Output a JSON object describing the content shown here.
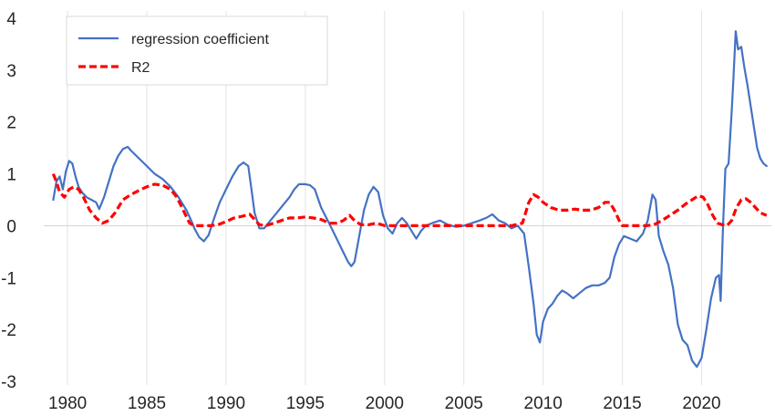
{
  "chart_data": {
    "type": "line",
    "title": "",
    "xlabel": "",
    "ylabel": "",
    "xlim": [
      1978.5,
      2024.4
    ],
    "ylim": [
      -3,
      4
    ],
    "xticks": [
      1980,
      1985,
      1990,
      1995,
      2000,
      2005,
      2010,
      2015,
      2020
    ],
    "xtick_labels": [
      "1980",
      "1985",
      "1990",
      "1995",
      "2000",
      "2005",
      "2010",
      "2015",
      "2020"
    ],
    "yticks": [
      -3,
      -2,
      -1,
      0,
      1,
      2,
      3,
      4
    ],
    "ytick_labels": [
      "-3",
      "-2",
      "-1",
      "0",
      "1",
      "2",
      "3",
      "4"
    ],
    "grid": "vertical",
    "legend": {
      "position": "top-left",
      "entries": [
        "regression coefficient",
        "R2"
      ]
    },
    "series": [
      {
        "name": "regression coefficient",
        "color": "#4472c4",
        "style": "solid",
        "x": [
          1979.1,
          1979.3,
          1979.5,
          1979.7,
          1979.9,
          1980.1,
          1980.3,
          1980.5,
          1980.7,
          1980.9,
          1981.2,
          1981.5,
          1981.8,
          1982.0,
          1982.3,
          1982.6,
          1982.9,
          1983.2,
          1983.5,
          1983.8,
          1984.0,
          1984.5,
          1985.0,
          1985.5,
          1986.0,
          1986.5,
          1987.0,
          1987.5,
          1987.8,
          1988.0,
          1988.3,
          1988.6,
          1988.9,
          1989.2,
          1989.6,
          1990.0,
          1990.4,
          1990.8,
          1991.1,
          1991.4,
          1991.6,
          1991.8,
          1992.1,
          1992.4,
          1992.8,
          1993.2,
          1993.6,
          1994.0,
          1994.3,
          1994.6,
          1995.0,
          1995.3,
          1995.6,
          1996.0,
          1996.5,
          1996.9,
          1997.3,
          1997.7,
          1997.9,
          1998.1,
          1998.4,
          1998.7,
          1999.0,
          1999.3,
          1999.6,
          1999.9,
          2000.2,
          2000.5,
          2000.8,
          2001.1,
          2001.4,
          2001.7,
          2002.0,
          2002.3,
          2002.6,
          2003.0,
          2003.5,
          2004.0,
          2004.5,
          2005.0,
          2005.5,
          2006.0,
          2006.4,
          2006.8,
          2007.2,
          2007.6,
          2008.0,
          2008.4,
          2008.8,
          2009.1,
          2009.4,
          2009.6,
          2009.8,
          2010.0,
          2010.3,
          2010.6,
          2010.9,
          2011.2,
          2011.5,
          2011.9,
          2012.3,
          2012.7,
          2013.1,
          2013.5,
          2013.9,
          2014.2,
          2014.5,
          2014.8,
          2015.1,
          2015.5,
          2015.9,
          2016.3,
          2016.6,
          2016.9,
          2017.1,
          2017.3,
          2017.6,
          2017.9,
          2018.2,
          2018.5,
          2018.8,
          2019.1,
          2019.4,
          2019.7,
          2020.0,
          2020.3,
          2020.6,
          2020.9,
          2021.1,
          2021.2,
          2021.35,
          2021.5,
          2021.7,
          2021.9,
          2022.0,
          2022.15,
          2022.3,
          2022.5,
          2022.7,
          2022.9,
          2023.1,
          2023.3,
          2023.5,
          2023.7,
          2023.9,
          2024.1
        ],
        "values": [
          0.5,
          0.85,
          0.95,
          0.7,
          1.05,
          1.25,
          1.2,
          0.95,
          0.75,
          0.65,
          0.55,
          0.5,
          0.45,
          0.32,
          0.55,
          0.85,
          1.15,
          1.35,
          1.48,
          1.52,
          1.45,
          1.3,
          1.15,
          1.0,
          0.9,
          0.75,
          0.55,
          0.3,
          0.1,
          -0.05,
          -0.22,
          -0.3,
          -0.18,
          0.1,
          0.45,
          0.7,
          0.95,
          1.15,
          1.22,
          1.15,
          0.7,
          0.25,
          -0.05,
          -0.05,
          0.1,
          0.25,
          0.4,
          0.55,
          0.7,
          0.8,
          0.8,
          0.78,
          0.7,
          0.35,
          0.05,
          -0.2,
          -0.45,
          -0.7,
          -0.78,
          -0.7,
          -0.2,
          0.3,
          0.6,
          0.75,
          0.65,
          0.2,
          -0.05,
          -0.15,
          0.05,
          0.15,
          0.05,
          -0.1,
          -0.25,
          -0.1,
          0.0,
          0.05,
          0.1,
          0.02,
          -0.02,
          0.0,
          0.05,
          0.1,
          0.15,
          0.22,
          0.1,
          0.05,
          -0.05,
          0.0,
          -0.15,
          -0.8,
          -1.5,
          -2.1,
          -2.25,
          -1.85,
          -1.6,
          -1.5,
          -1.35,
          -1.25,
          -1.3,
          -1.4,
          -1.3,
          -1.2,
          -1.15,
          -1.15,
          -1.1,
          -1.0,
          -0.6,
          -0.35,
          -0.2,
          -0.25,
          -0.3,
          -0.15,
          0.1,
          0.6,
          0.5,
          -0.2,
          -0.5,
          -0.75,
          -1.2,
          -1.9,
          -2.2,
          -2.3,
          -2.6,
          -2.72,
          -2.55,
          -2.0,
          -1.4,
          -1.0,
          -0.95,
          -1.45,
          0.0,
          1.1,
          1.2,
          2.2,
          2.8,
          3.75,
          3.4,
          3.45,
          3.05,
          2.7,
          2.3,
          1.9,
          1.5,
          1.3,
          1.2,
          1.15
        ]
      },
      {
        "name": "R2",
        "color": "#ff0000",
        "style": "dashed",
        "x": [
          1979.1,
          1979.3,
          1979.5,
          1979.8,
          1980.1,
          1980.4,
          1980.7,
          1981.0,
          1981.4,
          1981.8,
          1982.2,
          1982.6,
          1983.0,
          1983.5,
          1984.0,
          1984.5,
          1985.0,
          1985.5,
          1986.0,
          1986.5,
          1986.9,
          1987.3,
          1987.7,
          1988.0,
          1988.5,
          1989.0,
          1989.5,
          1990.0,
          1990.5,
          1991.0,
          1991.5,
          1991.8,
          1992.1,
          1992.5,
          1993.0,
          1993.5,
          1994.0,
          1994.5,
          1995.0,
          1995.5,
          1996.0,
          1996.5,
          1997.0,
          1997.4,
          1997.8,
          1998.1,
          1998.5,
          1999.0,
          1999.5,
          2000.0,
          2001.0,
          2002.0,
          2003.0,
          2004.0,
          2005.0,
          2006.0,
          2007.0,
          2008.0,
          2008.7,
          2009.1,
          2009.4,
          2009.7,
          2010.0,
          2010.5,
          2011.0,
          2011.5,
          2012.0,
          2012.5,
          2013.0,
          2013.5,
          2013.9,
          2014.2,
          2014.5,
          2014.8,
          2015.0,
          2015.5,
          2016.0,
          2016.5,
          2017.0,
          2017.5,
          2018.0,
          2018.5,
          2019.0,
          2019.5,
          2019.8,
          2020.1,
          2020.4,
          2020.7,
          2021.0,
          2021.3,
          2021.6,
          2021.9,
          2022.2,
          2022.5,
          2022.8,
          2023.1,
          2023.4,
          2023.7,
          2024.1
        ],
        "values": [
          1.0,
          0.85,
          0.65,
          0.55,
          0.7,
          0.75,
          0.7,
          0.55,
          0.3,
          0.15,
          0.05,
          0.1,
          0.25,
          0.5,
          0.6,
          0.68,
          0.75,
          0.8,
          0.78,
          0.7,
          0.55,
          0.3,
          0.05,
          0.0,
          0.0,
          0.0,
          0.02,
          0.08,
          0.15,
          0.18,
          0.22,
          0.12,
          0.02,
          0.0,
          0.05,
          0.1,
          0.15,
          0.15,
          0.17,
          0.15,
          0.12,
          0.05,
          0.05,
          0.1,
          0.2,
          0.1,
          0.02,
          0.02,
          0.05,
          0.0,
          0.0,
          0.0,
          0.0,
          0.0,
          0.0,
          0.0,
          0.0,
          0.0,
          0.05,
          0.45,
          0.6,
          0.55,
          0.45,
          0.35,
          0.3,
          0.3,
          0.32,
          0.3,
          0.3,
          0.35,
          0.45,
          0.45,
          0.3,
          0.1,
          0.0,
          0.0,
          0.0,
          0.0,
          0.02,
          0.1,
          0.2,
          0.3,
          0.42,
          0.52,
          0.58,
          0.55,
          0.4,
          0.2,
          0.05,
          0.02,
          0.0,
          0.1,
          0.35,
          0.5,
          0.52,
          0.45,
          0.35,
          0.25,
          0.2
        ]
      }
    ]
  }
}
